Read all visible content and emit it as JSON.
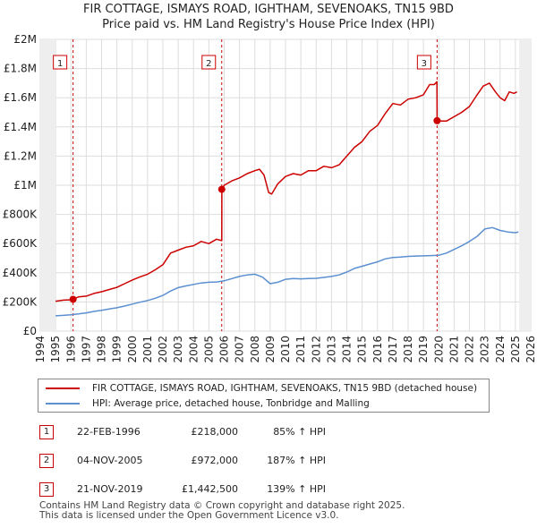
{
  "title_line1": "FIR COTTAGE, ISMAYS ROAD, IGHTHAM, SEVENOAKS, TN15 9BD",
  "title_line2": "Price paid vs. HM Land Registry's House Price Index (HPI)",
  "chart_data": {
    "type": "line",
    "xlim": [
      1994,
      2026
    ],
    "ylim": [
      0,
      2000000
    ],
    "x_ticks": [
      1994,
      1995,
      1996,
      1997,
      1998,
      1999,
      2000,
      2001,
      2002,
      2003,
      2004,
      2005,
      2006,
      2007,
      2008,
      2009,
      2010,
      2011,
      2012,
      2013,
      2014,
      2015,
      2016,
      2017,
      2018,
      2019,
      2020,
      2021,
      2022,
      2023,
      2024,
      2025,
      2026
    ],
    "y_ticks": [
      {
        "value": 0,
        "label": "£0"
      },
      {
        "value": 200000,
        "label": "£200K"
      },
      {
        "value": 400000,
        "label": "£400K"
      },
      {
        "value": 600000,
        "label": "£600K"
      },
      {
        "value": 800000,
        "label": "£800K"
      },
      {
        "value": 1000000,
        "label": "£1M"
      },
      {
        "value": 1200000,
        "label": "£1.2M"
      },
      {
        "value": 1400000,
        "label": "£1.4M"
      },
      {
        "value": 1600000,
        "label": "£1.6M"
      },
      {
        "value": 1800000,
        "label": "£1.8M"
      },
      {
        "value": 2000000,
        "label": "£2M"
      }
    ],
    "series": [
      {
        "name": "FIR COTTAGE, ISMAYS ROAD, IGHTHAM, SEVENOAKS, TN15 9BD (detached house)",
        "color": "#cc0000",
        "x": [
          1995.0,
          1995.5,
          1996.0,
          1996.14,
          1996.5,
          1997.0,
          1997.5,
          1998.0,
          1998.5,
          1999.0,
          1999.5,
          2000.0,
          2000.5,
          2001.0,
          2001.5,
          2002.0,
          2002.5,
          2003.0,
          2003.5,
          2004.0,
          2004.5,
          2005.0,
          2005.5,
          2005.84,
          2005.85,
          2006.0,
          2006.5,
          2007.0,
          2007.5,
          2008.0,
          2008.3,
          2008.6,
          2008.9,
          2009.1,
          2009.5,
          2010.0,
          2010.5,
          2011.0,
          2011.5,
          2012.0,
          2012.5,
          2013.0,
          2013.5,
          2014.0,
          2014.5,
          2015.0,
          2015.5,
          2016.0,
          2016.5,
          2017.0,
          2017.5,
          2018.0,
          2018.5,
          2019.0,
          2019.4,
          2019.7,
          2019.88,
          2019.89,
          2020.2,
          2020.5,
          2021.0,
          2021.5,
          2022.0,
          2022.5,
          2022.9,
          2023.3,
          2023.7,
          2024.0,
          2024.3,
          2024.6,
          2024.9,
          2025.1
        ],
        "values": [
          205000,
          212000,
          215000,
          218000,
          235000,
          240000,
          258000,
          270000,
          285000,
          300000,
          325000,
          350000,
          372000,
          390000,
          420000,
          455000,
          535000,
          555000,
          575000,
          585000,
          615000,
          600000,
          630000,
          620000,
          972000,
          1000000,
          1030000,
          1050000,
          1080000,
          1100000,
          1110000,
          1070000,
          950000,
          940000,
          1010000,
          1060000,
          1080000,
          1070000,
          1100000,
          1100000,
          1130000,
          1120000,
          1140000,
          1200000,
          1260000,
          1300000,
          1370000,
          1410000,
          1490000,
          1560000,
          1550000,
          1590000,
          1600000,
          1620000,
          1690000,
          1690000,
          1710000,
          1442500,
          1440000,
          1440000,
          1470000,
          1500000,
          1540000,
          1620000,
          1680000,
          1700000,
          1640000,
          1600000,
          1580000,
          1640000,
          1630000,
          1640000
        ]
      },
      {
        "name": "HPI: Average price, detached house, Tonbridge and Malling",
        "color": "#5b8fd0",
        "x": [
          1995.0,
          1995.5,
          1996.0,
          1996.5,
          1997.0,
          1997.5,
          1998.0,
          1998.5,
          1999.0,
          1999.5,
          2000.0,
          2000.5,
          2001.0,
          2001.5,
          2002.0,
          2002.5,
          2003.0,
          2003.5,
          2004.0,
          2004.5,
          2005.0,
          2005.5,
          2006.0,
          2006.5,
          2007.0,
          2007.5,
          2008.0,
          2008.5,
          2009.0,
          2009.5,
          2010.0,
          2010.5,
          2011.0,
          2011.5,
          2012.0,
          2012.5,
          2013.0,
          2013.5,
          2014.0,
          2014.5,
          2015.0,
          2015.5,
          2016.0,
          2016.5,
          2017.0,
          2017.5,
          2018.0,
          2018.5,
          2019.0,
          2019.5,
          2020.0,
          2020.5,
          2021.0,
          2021.5,
          2022.0,
          2022.5,
          2023.0,
          2023.5,
          2024.0,
          2024.5,
          2025.0,
          2025.2
        ],
        "values": [
          105000,
          108000,
          112000,
          118000,
          125000,
          135000,
          143000,
          152000,
          160000,
          172000,
          185000,
          198000,
          210000,
          225000,
          245000,
          275000,
          298000,
          310000,
          320000,
          330000,
          335000,
          337000,
          345000,
          360000,
          375000,
          385000,
          390000,
          370000,
          325000,
          335000,
          355000,
          360000,
          358000,
          360000,
          362000,
          368000,
          375000,
          385000,
          405000,
          430000,
          445000,
          460000,
          475000,
          495000,
          505000,
          508000,
          512000,
          515000,
          516000,
          518000,
          520000,
          535000,
          560000,
          585000,
          615000,
          650000,
          700000,
          710000,
          690000,
          680000,
          675000,
          680000
        ]
      }
    ],
    "sales": [
      {
        "label": "1",
        "x": 1996.14,
        "value": 218000
      },
      {
        "label": "2",
        "x": 2005.84,
        "value": 972000
      },
      {
        "label": "3",
        "x": 2019.89,
        "value": 1442500
      }
    ]
  },
  "legend": {
    "property": "FIR COTTAGE, ISMAYS ROAD, IGHTHAM, SEVENOAKS, TN15 9BD (detached house)",
    "hpi": "HPI: Average price, detached house, Tonbridge and Malling",
    "property_color": "#cc0000",
    "hpi_color": "#5b8fd0"
  },
  "sales_table": [
    {
      "num": "1",
      "date": "22-FEB-1996",
      "price": "£218,000",
      "hpi": "85% ↑ HPI"
    },
    {
      "num": "2",
      "date": "04-NOV-2005",
      "price": "£972,000",
      "hpi": "187% ↑ HPI"
    },
    {
      "num": "3",
      "date": "21-NOV-2019",
      "price": "£1,442,500",
      "hpi": "139% ↑ HPI"
    }
  ],
  "footer_line1": "Contains HM Land Registry data © Crown copyright and database right 2025.",
  "footer_line2": "This data is licensed under the Open Government Licence v3.0."
}
